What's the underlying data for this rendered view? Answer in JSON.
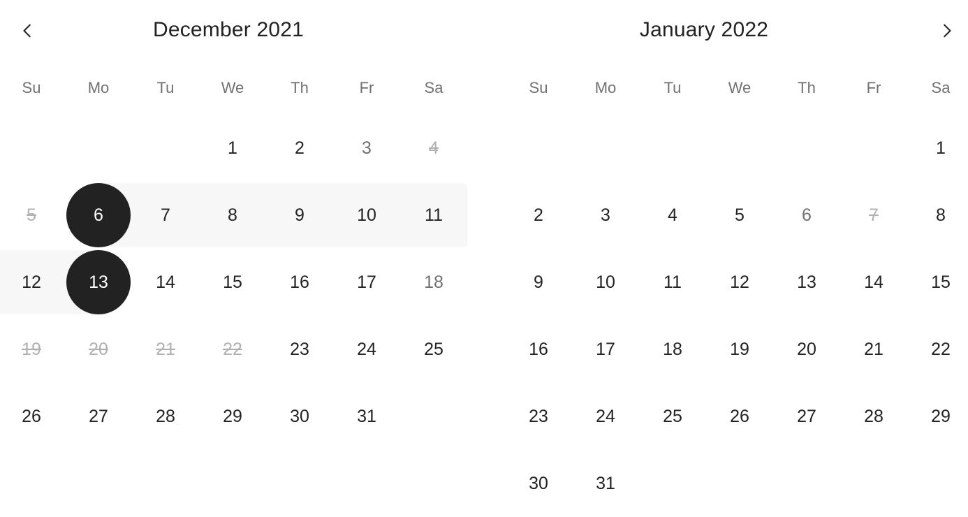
{
  "navigation": {
    "prev_icon": "chevron-left-icon",
    "next_icon": "chevron-right-icon"
  },
  "weekdays": [
    "Su",
    "Mo",
    "Tu",
    "We",
    "Th",
    "Fr",
    "Sa"
  ],
  "colors": {
    "text": "#222222",
    "muted": "#717171",
    "blocked": "#b0b0b0",
    "selected_bg": "#222222",
    "range_bg": "#f7f7f7"
  },
  "months": [
    {
      "title": "December 2021",
      "weeks": [
        [
          null,
          null,
          null,
          {
            "d": "1"
          },
          {
            "d": "2"
          },
          {
            "d": "3",
            "s": "muted"
          },
          {
            "d": "4",
            "s": "blocked"
          }
        ],
        [
          {
            "d": "5",
            "s": "blocked"
          },
          {
            "d": "6",
            "s": "selected",
            "r": "start"
          },
          {
            "d": "7",
            "s": "range"
          },
          {
            "d": "8",
            "s": "range"
          },
          {
            "d": "9",
            "s": "range"
          },
          {
            "d": "10",
            "s": "range"
          },
          {
            "d": "11",
            "s": "range",
            "r": "row-end"
          }
        ],
        [
          {
            "d": "12",
            "s": "range",
            "r": "row-start"
          },
          {
            "d": "13",
            "s": "selected",
            "r": "end"
          },
          {
            "d": "14"
          },
          {
            "d": "15"
          },
          {
            "d": "16"
          },
          {
            "d": "17"
          },
          {
            "d": "18",
            "s": "muted"
          }
        ],
        [
          {
            "d": "19",
            "s": "blocked"
          },
          {
            "d": "20",
            "s": "blocked"
          },
          {
            "d": "21",
            "s": "blocked"
          },
          {
            "d": "22",
            "s": "blocked"
          },
          {
            "d": "23"
          },
          {
            "d": "24"
          },
          {
            "d": "25"
          }
        ],
        [
          {
            "d": "26"
          },
          {
            "d": "27"
          },
          {
            "d": "28"
          },
          {
            "d": "29"
          },
          {
            "d": "30"
          },
          {
            "d": "31"
          },
          null
        ]
      ]
    },
    {
      "title": "January 2022",
      "weeks": [
        [
          null,
          null,
          null,
          null,
          null,
          null,
          {
            "d": "1"
          }
        ],
        [
          {
            "d": "2"
          },
          {
            "d": "3"
          },
          {
            "d": "4"
          },
          {
            "d": "5"
          },
          {
            "d": "6",
            "s": "muted"
          },
          {
            "d": "7",
            "s": "blocked"
          },
          {
            "d": "8"
          }
        ],
        [
          {
            "d": "9"
          },
          {
            "d": "10"
          },
          {
            "d": "11"
          },
          {
            "d": "12"
          },
          {
            "d": "13"
          },
          {
            "d": "14"
          },
          {
            "d": "15"
          }
        ],
        [
          {
            "d": "16"
          },
          {
            "d": "17"
          },
          {
            "d": "18"
          },
          {
            "d": "19"
          },
          {
            "d": "20"
          },
          {
            "d": "21"
          },
          {
            "d": "22"
          }
        ],
        [
          {
            "d": "23"
          },
          {
            "d": "24"
          },
          {
            "d": "25"
          },
          {
            "d": "26"
          },
          {
            "d": "27"
          },
          {
            "d": "28"
          },
          {
            "d": "29"
          }
        ],
        [
          {
            "d": "30"
          },
          {
            "d": "31"
          },
          null,
          null,
          null,
          null,
          null
        ]
      ]
    }
  ]
}
